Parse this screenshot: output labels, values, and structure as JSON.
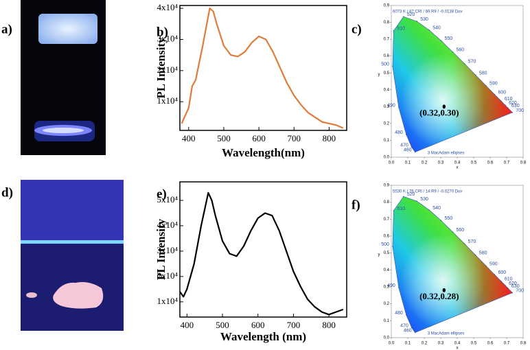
{
  "panel_labels": [
    "a)",
    "b)",
    "c)",
    "d)",
    "e)",
    "f)"
  ],
  "chart_data": [
    {
      "type": "line",
      "xlabel": "Wavelength(nm)",
      "ylabel": "PL Intensity",
      "color": "#e07b39",
      "x": [
        380,
        400,
        410,
        420,
        440,
        460,
        470,
        480,
        500,
        520,
        540,
        560,
        580,
        600,
        620,
        640,
        660,
        680,
        700,
        720,
        740,
        760,
        780,
        800,
        820,
        840
      ],
      "values": [
        3000,
        8000,
        15000,
        17000,
        28000,
        40000,
        39000,
        35000,
        28000,
        25000,
        24500,
        26000,
        29000,
        31000,
        30000,
        26000,
        21000,
        16000,
        12000,
        9000,
        6500,
        5000,
        3500,
        3000,
        2500,
        1500
      ],
      "xlim": [
        375,
        850
      ],
      "xticks": [
        400,
        500,
        600,
        700,
        800
      ],
      "ylim": [
        800,
        40900
      ],
      "yticks": [
        {
          "value": 10000,
          "label": "1x10⁴"
        },
        {
          "value": 20000,
          "label": "2x10⁴"
        },
        {
          "value": 30000,
          "label": "3x10⁴"
        },
        {
          "value": 40000,
          "label": "4x10⁴"
        }
      ]
    },
    {
      "type": "cie",
      "xlabel": "x",
      "ylabel": "y",
      "cct_text": "6073 K / 87 CRI / 69 R9 / -0.0138 Duv",
      "ellipse_text": "3  MacAdam ellipses",
      "point": {
        "x": 0.32,
        "y": 0.3
      },
      "point_label": "(0.32,0.30)",
      "locus": [
        {
          "label": "460",
          "x": 0.144,
          "y": 0.03
        },
        {
          "label": "470",
          "x": 0.124,
          "y": 0.058
        },
        {
          "label": "480",
          "x": 0.091,
          "y": 0.133
        },
        {
          "label": "490",
          "x": 0.045,
          "y": 0.295
        },
        {
          "label": "500",
          "x": 0.008,
          "y": 0.538
        },
        {
          "label": "510",
          "x": 0.014,
          "y": 0.75
        },
        {
          "label": "520",
          "x": 0.074,
          "y": 0.834
        },
        {
          "label": "530",
          "x": 0.155,
          "y": 0.806
        },
        {
          "label": "540",
          "x": 0.23,
          "y": 0.754
        },
        {
          "label": "550",
          "x": 0.302,
          "y": 0.692
        },
        {
          "label": "560",
          "x": 0.373,
          "y": 0.624
        },
        {
          "label": "570",
          "x": 0.444,
          "y": 0.555
        },
        {
          "label": "580",
          "x": 0.512,
          "y": 0.487
        },
        {
          "label": "590",
          "x": 0.575,
          "y": 0.424
        },
        {
          "label": "600",
          "x": 0.627,
          "y": 0.372
        },
        {
          "label": "610",
          "x": 0.666,
          "y": 0.334
        },
        {
          "label": "620",
          "x": 0.692,
          "y": 0.308
        },
        {
          "label": "630",
          "x": 0.708,
          "y": 0.292
        },
        {
          "label": "700",
          "x": 0.735,
          "y": 0.265
        }
      ],
      "xlim": [
        0,
        0.8
      ],
      "xticks": [
        {
          "value": 0,
          "label": "0.0"
        },
        0.1,
        0.2,
        0.3,
        0.4,
        0.5,
        0.6,
        0.7,
        0.8
      ],
      "ylim": [
        0,
        0.9
      ],
      "yticks": [
        {
          "value": 0,
          "label": "0.0"
        },
        0.1,
        0.2,
        0.3,
        0.4,
        0.5,
        0.6,
        0.7,
        0.8,
        0.9
      ]
    },
    {
      "type": "line",
      "xlabel": "Wavelength (nm)",
      "ylabel": "PL Intensity",
      "color": "#000000",
      "x": [
        380,
        390,
        400,
        420,
        440,
        460,
        470,
        480,
        500,
        520,
        540,
        560,
        580,
        600,
        620,
        640,
        660,
        680,
        700,
        720,
        740,
        760,
        780,
        800,
        820,
        840
      ],
      "values": [
        14000,
        12000,
        15000,
        25000,
        40000,
        53000,
        50000,
        44000,
        34000,
        29000,
        28000,
        32000,
        38000,
        43000,
        45000,
        44000,
        38000,
        30000,
        22000,
        16000,
        11000,
        8000,
        6000,
        5000,
        6000,
        7000
      ],
      "xlim": [
        380,
        850
      ],
      "xticks": [
        400,
        500,
        600,
        700,
        800
      ],
      "ylim": [
        4000,
        57300
      ],
      "yticks": [
        {
          "value": 10000,
          "label": "1x10⁴"
        },
        {
          "value": 20000,
          "label": "2x10⁴"
        },
        {
          "value": 30000,
          "label": "3x10⁴"
        },
        {
          "value": 40000,
          "label": "4x10⁴"
        },
        {
          "value": 50000,
          "label": "5x10⁴"
        }
      ]
    },
    {
      "type": "cie",
      "xlabel": "x",
      "ylabel": "y",
      "cct_text": "5530 K / 76 CRI / 14 R9 / -0.0270 Duv",
      "ellipse_text": "3  MacAdam ellipses",
      "point": {
        "x": 0.32,
        "y": 0.28
      },
      "point_label": "(0.32,0.28)",
      "locus": [
        {
          "label": "460",
          "x": 0.144,
          "y": 0.03
        },
        {
          "label": "470",
          "x": 0.124,
          "y": 0.058
        },
        {
          "label": "480",
          "x": 0.091,
          "y": 0.133
        },
        {
          "label": "490",
          "x": 0.045,
          "y": 0.295
        },
        {
          "label": "500",
          "x": 0.008,
          "y": 0.538
        },
        {
          "label": "510",
          "x": 0.014,
          "y": 0.75
        },
        {
          "label": "520",
          "x": 0.074,
          "y": 0.834
        },
        {
          "label": "530",
          "x": 0.155,
          "y": 0.806
        },
        {
          "label": "540",
          "x": 0.23,
          "y": 0.754
        },
        {
          "label": "550",
          "x": 0.302,
          "y": 0.692
        },
        {
          "label": "560",
          "x": 0.373,
          "y": 0.624
        },
        {
          "label": "570",
          "x": 0.444,
          "y": 0.555
        },
        {
          "label": "580",
          "x": 0.512,
          "y": 0.487
        },
        {
          "label": "590",
          "x": 0.575,
          "y": 0.424
        },
        {
          "label": "600",
          "x": 0.627,
          "y": 0.372
        },
        {
          "label": "610",
          "x": 0.666,
          "y": 0.334
        },
        {
          "label": "620",
          "x": 0.692,
          "y": 0.308
        },
        {
          "label": "630",
          "x": 0.708,
          "y": 0.292
        },
        {
          "label": "700",
          "x": 0.735,
          "y": 0.265
        }
      ],
      "xlim": [
        0,
        0.8
      ],
      "xticks": [
        {
          "value": 0,
          "label": "0.0"
        },
        0.1,
        0.2,
        0.3,
        0.4,
        0.5,
        0.6,
        0.7,
        0.8
      ],
      "ylim": [
        0,
        0.9
      ],
      "yticks": [
        {
          "value": 0,
          "label": "0.0"
        },
        0.1,
        0.2,
        0.3,
        0.4,
        0.5,
        0.6,
        0.7,
        0.8,
        0.9
      ]
    }
  ]
}
